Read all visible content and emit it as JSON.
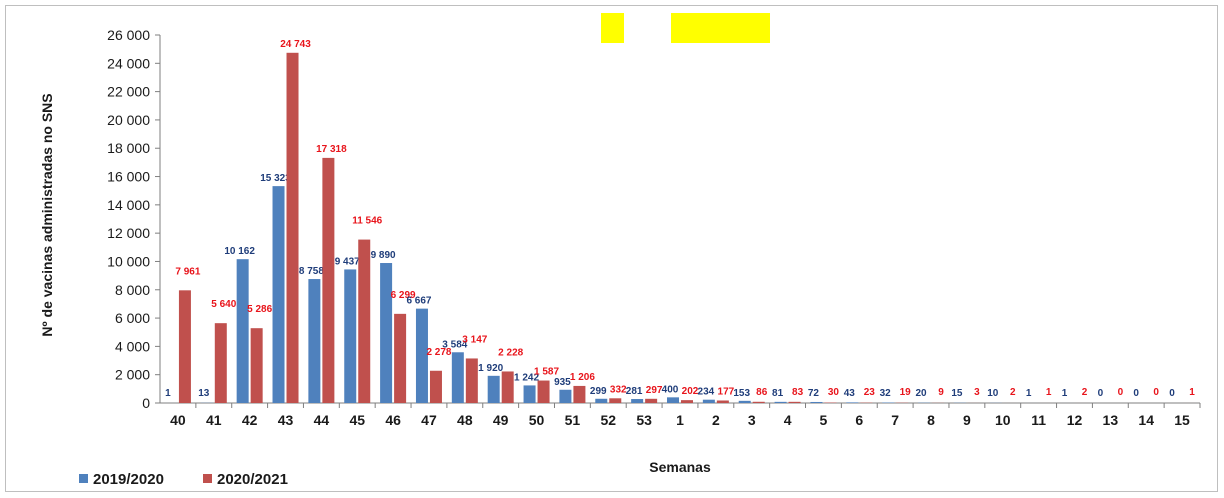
{
  "chart_data": {
    "type": "bar",
    "title": "",
    "xlabel": "Semanas",
    "ylabel": "Nº de vacinas administradas no SNS",
    "ylim": [
      0,
      26000
    ],
    "ytick_values": [
      0,
      2000,
      4000,
      6000,
      8000,
      10000,
      12000,
      14000,
      16000,
      18000,
      20000,
      22000,
      24000,
      26000
    ],
    "ytick_labels": [
      "0",
      "2 000",
      "4 000",
      "6 000",
      "8 000",
      "10 000",
      "12 000",
      "14 000",
      "16 000",
      "18 000",
      "20 000",
      "22 000",
      "24 000",
      "26 000"
    ],
    "categories": [
      "40",
      "41",
      "42",
      "43",
      "44",
      "45",
      "46",
      "47",
      "48",
      "49",
      "50",
      "51",
      "52",
      "53",
      "1",
      "2",
      "3",
      "4",
      "5",
      "6",
      "7",
      "8",
      "9",
      "10",
      "11",
      "12",
      "13",
      "14",
      "15"
    ],
    "series": [
      {
        "name": "2019/2020",
        "color": "#4f81bd",
        "label_color": "#1f3d7a",
        "values": [
          1,
          13,
          10162,
          15323,
          8758,
          9437,
          9890,
          6667,
          3584,
          1920,
          1242,
          935,
          299,
          281,
          400,
          234,
          153,
          81,
          72,
          43,
          32,
          20,
          15,
          10,
          1,
          1,
          0,
          0,
          0
        ],
        "labels": [
          "1",
          "13",
          "10 162",
          "15 323",
          "8 758",
          "9 437",
          "9 890",
          "6 667",
          "3 584",
          "1 920",
          "1 242",
          "935",
          "299",
          "281",
          "400",
          "234",
          "153",
          "81",
          "72",
          "43",
          "32",
          "20",
          "15",
          "10",
          "1",
          "1",
          "0",
          "0",
          "0"
        ]
      },
      {
        "name": "2020/2021",
        "color": "#c0504d",
        "label_color": "#e8141b",
        "values": [
          7961,
          5640,
          5286,
          24743,
          17318,
          11546,
          6299,
          2278,
          3147,
          2228,
          1587,
          1206,
          332,
          297,
          202,
          177,
          86,
          83,
          30,
          23,
          19,
          9,
          3,
          2,
          1,
          2,
          0,
          0,
          1
        ],
        "labels": [
          "7 961",
          "5 640",
          "5 286",
          "24 743",
          "17 318",
          "11 546",
          "6 299",
          "2 278",
          "3 147",
          "2 228",
          "1 587",
          "1 206",
          "332",
          "297",
          "202",
          "177",
          "86",
          "83",
          "30",
          "23",
          "19",
          "9",
          "3",
          "2",
          "1",
          "2",
          "0",
          "0",
          "1"
        ]
      }
    ],
    "grid": false,
    "legend_position": "bottom-left"
  },
  "highlights": [
    {
      "name": "highlight-small",
      "color": "#ffff00"
    },
    {
      "name": "highlight-wide",
      "color": "#ffff00"
    }
  ]
}
